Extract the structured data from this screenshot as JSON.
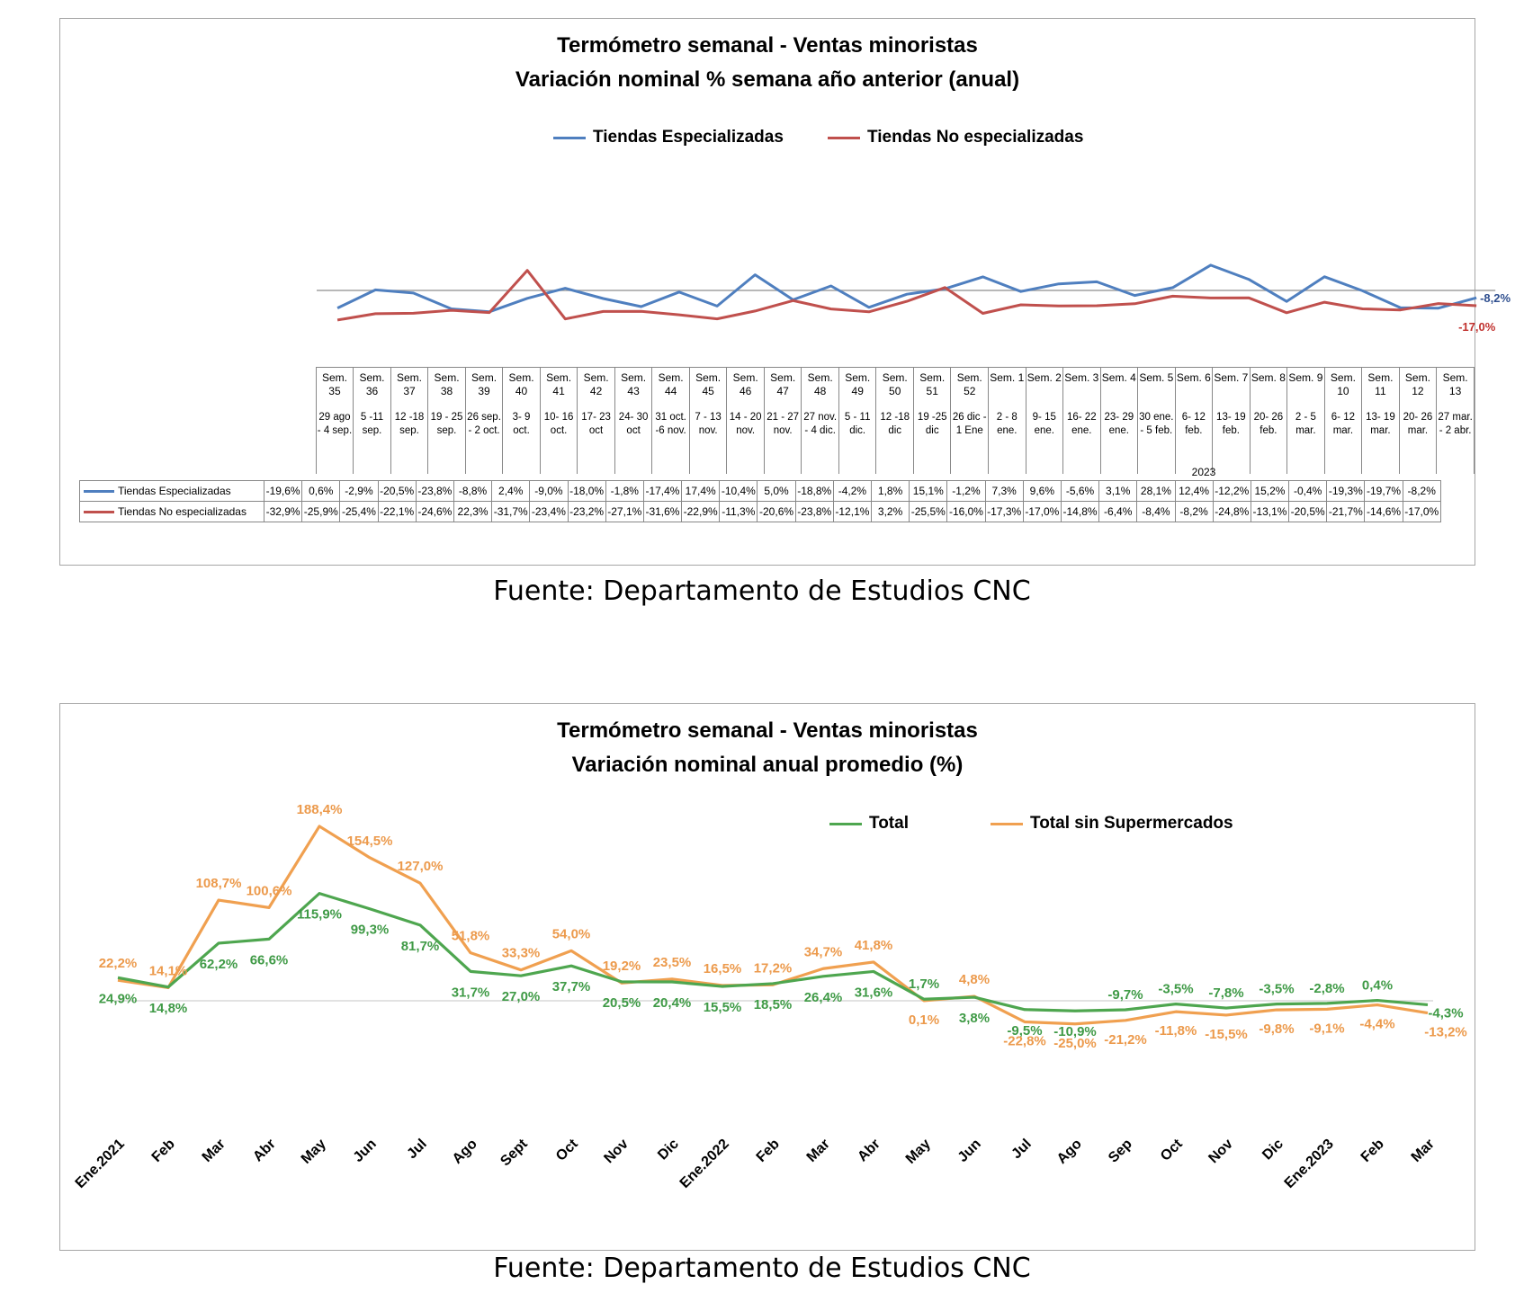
{
  "chart1": {
    "title_line1": "Termómetro semanal - Ventas minoristas",
    "title_line2": "Variación nominal % semana año anterior (anual)",
    "colors": {
      "especializadas": "#4f7fbf",
      "no_especializadas": "#c0504d"
    },
    "end_label_esp": "-8,2%",
    "end_label_noesp": "-17,0%",
    "year_marker": "2023"
  },
  "chart2": {
    "title_line1": "Termómetro semanal - Ventas minoristas",
    "title_line2": "Variación nominal anual promedio (%)",
    "colors": {
      "total": "#4ea64f",
      "sin_super": "#f0a050"
    }
  },
  "source_text": "Fuente: Departamento de Estudios CNC",
  "chart_data": [
    {
      "type": "line",
      "title": "Termómetro semanal - Ventas minoristas — Variación nominal % semana año anterior (anual)",
      "categories": [
        {
          "week": "Sem. 35",
          "dates": "29 ago - 4 sep."
        },
        {
          "week": "Sem. 36",
          "dates": "5 -11 sep."
        },
        {
          "week": "Sem. 37",
          "dates": "12 -18 sep."
        },
        {
          "week": "Sem. 38",
          "dates": "19 - 25 sep."
        },
        {
          "week": "Sem. 39",
          "dates": "26 sep. - 2 oct."
        },
        {
          "week": "Sem. 40",
          "dates": "3- 9 oct."
        },
        {
          "week": "Sem. 41",
          "dates": "10- 16 oct."
        },
        {
          "week": "Sem. 42",
          "dates": "17- 23 oct"
        },
        {
          "week": "Sem. 43",
          "dates": "24- 30 oct"
        },
        {
          "week": "Sem. 44",
          "dates": "31 oct. -6 nov."
        },
        {
          "week": "Sem. 45",
          "dates": "7 - 13 nov."
        },
        {
          "week": "Sem. 46",
          "dates": "14 - 20 nov."
        },
        {
          "week": "Sem. 47",
          "dates": "21 - 27 nov."
        },
        {
          "week": "Sem. 48",
          "dates": "27 nov. - 4 dic."
        },
        {
          "week": "Sem. 49",
          "dates": "5 - 11 dic."
        },
        {
          "week": "Sem. 50",
          "dates": "12 -18 dic"
        },
        {
          "week": "Sem. 51",
          "dates": "19 -25 dic"
        },
        {
          "week": "Sem. 52",
          "dates": "26 dic - 1 Ene"
        },
        {
          "week": "Sem. 1",
          "dates": "2 - 8 ene."
        },
        {
          "week": "Sem. 2",
          "dates": "9- 15 ene."
        },
        {
          "week": "Sem. 3",
          "dates": "16- 22 ene."
        },
        {
          "week": "Sem. 4",
          "dates": "23- 29 ene."
        },
        {
          "week": "Sem. 5",
          "dates": "30 ene. - 5 feb."
        },
        {
          "week": "Sem. 6",
          "dates": "6- 12 feb."
        },
        {
          "week": "Sem. 7",
          "dates": "13- 19 feb."
        },
        {
          "week": "Sem. 8",
          "dates": "20- 26 feb."
        },
        {
          "week": "Sem. 9",
          "dates": "2 - 5 mar."
        },
        {
          "week": "Sem. 10",
          "dates": "6- 12 mar."
        },
        {
          "week": "Sem. 11",
          "dates": "13- 19 mar."
        },
        {
          "week": "Sem. 12",
          "dates": "20- 26 mar."
        },
        {
          "week": "Sem. 13",
          "dates": "27 mar. - 2 abr."
        }
      ],
      "series": [
        {
          "name": "Tiendas Especializadas",
          "values": [
            -19.6,
            0.6,
            -2.9,
            -20.5,
            -23.8,
            -8.8,
            2.4,
            -9.0,
            -18.0,
            -1.8,
            -17.4,
            17.4,
            -10.4,
            5.0,
            -18.8,
            -4.2,
            1.8,
            15.1,
            -1.2,
            7.3,
            9.6,
            -5.6,
            3.1,
            28.1,
            12.4,
            -12.2,
            15.2,
            -0.4,
            -19.3,
            -19.7,
            -8.2
          ],
          "labels": [
            "-19,6%",
            "0,6%",
            "-2,9%",
            "-20,5%",
            "-23,8%",
            "-8,8%",
            "2,4%",
            "-9,0%",
            "-18,0%",
            "-1,8%",
            "-17,4%",
            "17,4%",
            "-10,4%",
            "5,0%",
            "-18,8%",
            "-4,2%",
            "1,8%",
            "15,1%",
            "-1,2%",
            "7,3%",
            "9,6%",
            "-5,6%",
            "3,1%",
            "28,1%",
            "12,4%",
            "-12,2%",
            "15,2%",
            "-0,4%",
            "-19,3%",
            "-19,7%",
            "-8,2%"
          ]
        },
        {
          "name": "Tiendas No especializadas",
          "values": [
            -32.9,
            -25.9,
            -25.4,
            -22.1,
            -24.6,
            22.3,
            -31.7,
            -23.4,
            -23.2,
            -27.1,
            -31.6,
            -22.9,
            -11.3,
            -20.6,
            -23.8,
            -12.1,
            3.2,
            -25.5,
            -16.0,
            -17.3,
            -17.0,
            -14.8,
            -6.4,
            -8.4,
            -8.2,
            -24.8,
            -13.1,
            -20.5,
            -21.7,
            -14.6,
            -17.0
          ],
          "labels": [
            "-32,9%",
            "-25,9%",
            "-25,4%",
            "-22,1%",
            "-24,6%",
            "22,3%",
            "-31,7%",
            "-23,4%",
            "-23,2%",
            "-27,1%",
            "-31,6%",
            "-22,9%",
            "-11,3%",
            "-20,6%",
            "-23,8%",
            "-12,1%",
            "3,2%",
            "-25,5%",
            "-16,0%",
            "-17,3%",
            "-17,0%",
            "-14,8%",
            "-6,4%",
            "-8,4%",
            "-8,2%",
            "-24,8%",
            "-13,1%",
            "-20,5%",
            "-21,7%",
            "-14,6%",
            "-17,0%"
          ]
        }
      ]
    },
    {
      "type": "line",
      "title": "Termómetro semanal - Ventas minoristas — Variación nominal anual promedio (%)",
      "categories": [
        "Ene.2021",
        "Feb",
        "Mar",
        "Abr",
        "May",
        "Jun",
        "Jul",
        "Ago",
        "Sept",
        "Oct",
        "Nov",
        "Dic",
        "Ene.2022",
        "Feb",
        "Mar",
        "Abr",
        "May",
        "Jun",
        "Jul",
        "Ago",
        "Sep",
        "Oct",
        "Nov",
        "Dic",
        "Ene.2023",
        "Feb",
        "Mar"
      ],
      "series": [
        {
          "name": "Total",
          "values": [
            24.9,
            14.8,
            62.2,
            66.6,
            115.9,
            99.3,
            81.7,
            31.7,
            27.0,
            37.7,
            20.5,
            20.4,
            15.5,
            18.5,
            26.4,
            31.6,
            1.7,
            3.8,
            -9.5,
            -10.9,
            -9.7,
            -3.5,
            -7.8,
            -3.5,
            -2.8,
            0.4,
            -4.3
          ],
          "labels": [
            "24,9%",
            "14,8%",
            "62,2%",
            "66,6%",
            "115,9%",
            "99,3%",
            "81,7%",
            "31,7%",
            "27,0%",
            "37,7%",
            "20,5%",
            "20,4%",
            "15,5%",
            "18,5%",
            "26,4%",
            "31,6%",
            "1,7%",
            "3,8%",
            "-9,5%",
            "-10,9%",
            "-9,7%",
            "-3,5%",
            "-7,8%",
            "-3,5%",
            "-2,8%",
            "0,4%",
            "-4,3%"
          ]
        },
        {
          "name": "Total sin Supermercados",
          "values": [
            22.2,
            14.1,
            108.7,
            100.6,
            188.4,
            154.5,
            127.0,
            51.8,
            33.3,
            54.0,
            19.2,
            23.5,
            16.5,
            17.2,
            34.7,
            41.8,
            0.1,
            4.8,
            -22.8,
            -25.0,
            -21.2,
            -11.8,
            -15.5,
            -9.8,
            -9.1,
            -4.4,
            -13.2
          ],
          "labels": [
            "22,2%",
            "14,1%",
            "108,7%",
            "100,6%",
            "188,4%",
            "154,5%",
            "127,0%",
            "51,8%",
            "33,3%",
            "54,0%",
            "19,2%",
            "23,5%",
            "16,5%",
            "17,2%",
            "34,7%",
            "41,8%",
            "0,1%",
            "4,8%",
            "-22,8%",
            "-25,0%",
            "-21,2%",
            "-11,8%",
            "-15,5%",
            "-9,8%",
            "-9,1%",
            "-4,4%",
            "-13,2%"
          ]
        }
      ]
    }
  ]
}
